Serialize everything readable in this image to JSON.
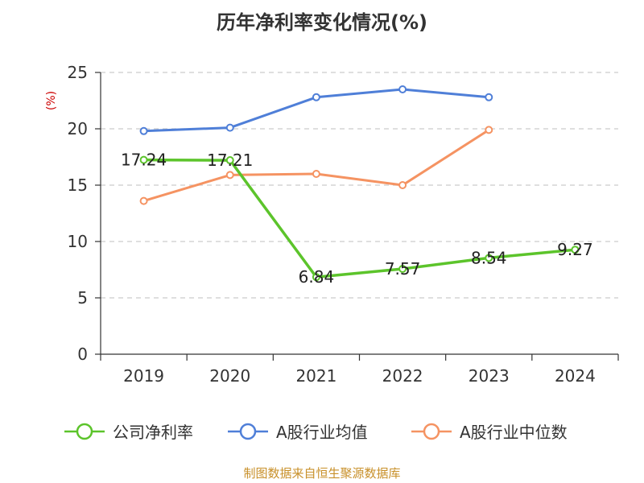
{
  "title": "历年净利率变化情况(%)",
  "unit_label": "(%)",
  "source": "制图数据来自恒生聚源数据库",
  "colors": {
    "axis": "#333333",
    "grid": "#cccccc",
    "unit": "#cc0000",
    "source": "#c8902a"
  },
  "chart_data": {
    "type": "line",
    "categories": [
      "2019",
      "2020",
      "2021",
      "2022",
      "2023",
      "2024"
    ],
    "ylim": [
      0,
      25
    ],
    "yticks": [
      0,
      5,
      10,
      15,
      20,
      25
    ],
    "grid": true,
    "legend_position": "bottom",
    "series": [
      {
        "name": "公司净利率",
        "color": "#5cc42b",
        "values": [
          17.24,
          17.21,
          6.84,
          7.57,
          8.54,
          9.27
        ],
        "labels": [
          "17.24",
          "17.21",
          "6.84",
          "7.57",
          "8.54",
          "9.27"
        ]
      },
      {
        "name": "A股行业均值",
        "color": "#4f7fd8",
        "values": [
          19.8,
          20.1,
          22.8,
          23.5,
          22.8,
          null
        ]
      },
      {
        "name": "A股行业中位数",
        "color": "#f59362",
        "values": [
          13.6,
          15.9,
          16.0,
          15.0,
          19.9,
          null
        ]
      }
    ]
  }
}
